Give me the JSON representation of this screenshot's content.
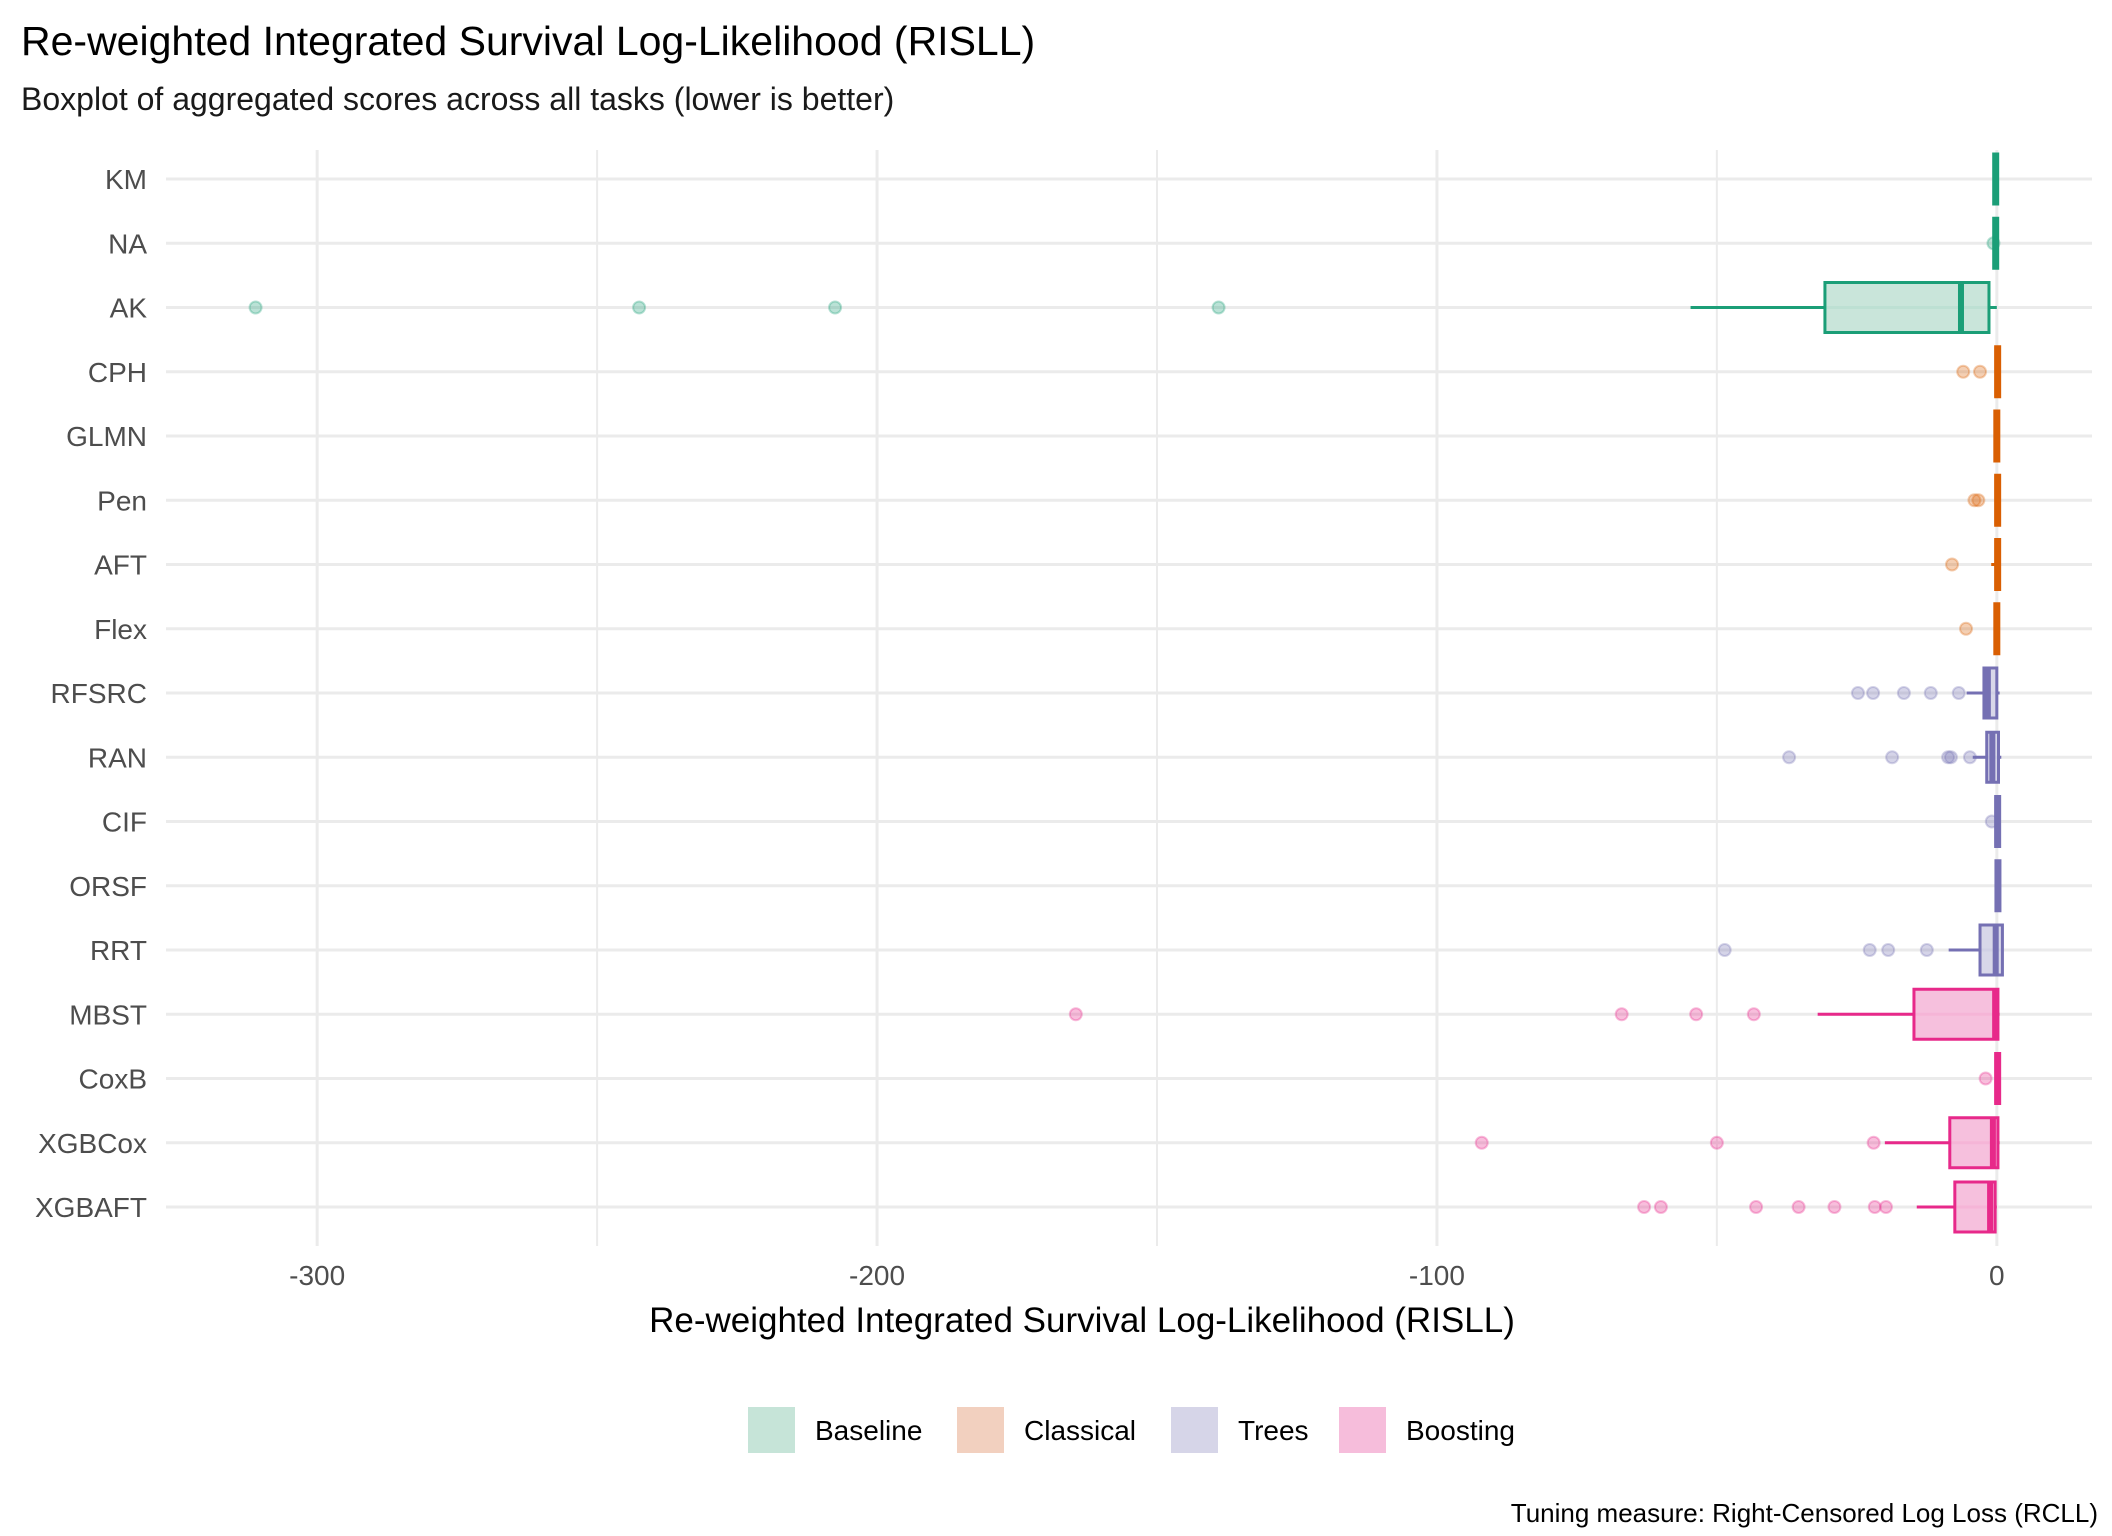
{
  "chart_data": {
    "type": "boxplot",
    "orientation": "horizontal",
    "title": "Re-weighted Integrated Survival Log-Likelihood (RISLL)",
    "subtitle": "Boxplot of aggregated scores across all tasks (lower is better)",
    "xlabel": "Re-weighted Integrated Survival Log-Likelihood (RISLL)",
    "ylabel": "",
    "caption": "Tuning measure: Right-Censored Log Loss (RCLL)",
    "xlim": [
      -327,
      17
    ],
    "xticks": [
      -300,
      -200,
      -100,
      0
    ],
    "xtick_labels": [
      "-300",
      "-200",
      "-100",
      "0"
    ],
    "grid": true,
    "legend_position": "bottom",
    "groups": [
      {
        "name": "Baseline",
        "line": "#1b9e77",
        "fill": "#c6e4d8"
      },
      {
        "name": "Classical",
        "line": "#d95f02",
        "fill": "#f2d0bf"
      },
      {
        "name": "Trees",
        "line": "#7570b3",
        "fill": "#d6d5e8"
      },
      {
        "name": "Boosting",
        "line": "#e7298a",
        "fill": "#f6bddb"
      }
    ],
    "categories": [
      "KM",
      "NA",
      "AK",
      "CPH",
      "GLMN",
      "Pen",
      "AFT",
      "Flex",
      "RFSRC",
      "RAN",
      "CIF",
      "ORSF",
      "RRT",
      "MBST",
      "CoxB",
      "XGBCox",
      "XGBAFT"
    ],
    "boxes": [
      {
        "label": "KM",
        "group": "Baseline",
        "whislo": -0.3,
        "q1": -0.3,
        "med": -0.2,
        "q3": -0.1,
        "whishi": 0,
        "outliers": []
      },
      {
        "label": "NA",
        "group": "Baseline",
        "whislo": -0.4,
        "q1": -0.3,
        "med": -0.2,
        "q3": -0.1,
        "whishi": 0,
        "outliers": [
          -0.6
        ]
      },
      {
        "label": "AK",
        "group": "Baseline",
        "whislo": -54.7,
        "q1": -30.7,
        "med": -6.4,
        "q3": -1.4,
        "whishi": 0,
        "outliers": [
          -311,
          -242.5,
          -207.5,
          -139
        ]
      },
      {
        "label": "CPH",
        "group": "Classical",
        "whislo": 0,
        "q1": 0,
        "med": 0.1,
        "q3": 0.3,
        "whishi": 0.4,
        "outliers": [
          -6,
          -3
        ]
      },
      {
        "label": "GLMN",
        "group": "Classical",
        "whislo": -0.3,
        "q1": -0.2,
        "med": 0,
        "q3": 0.2,
        "whishi": 0.3,
        "outliers": []
      },
      {
        "label": "Pen",
        "group": "Classical",
        "whislo": 0,
        "q1": 0,
        "med": 0.1,
        "q3": 0.3,
        "whishi": 0.4,
        "outliers": [
          -4,
          -3.3
        ]
      },
      {
        "label": "AFT",
        "group": "Classical",
        "whislo": -1,
        "q1": 0,
        "med": 0.1,
        "q3": 0.3,
        "whishi": 0.4,
        "outliers": [
          -8
        ]
      },
      {
        "label": "Flex",
        "group": "Classical",
        "whislo": -0.2,
        "q1": -0.2,
        "med": 0,
        "q3": 0.2,
        "whishi": 0.4,
        "outliers": [
          -5.5
        ]
      },
      {
        "label": "RFSRC",
        "group": "Trees",
        "whislo": -5.4,
        "q1": -2.3,
        "med": -1.6,
        "q3": 0,
        "whishi": 0.5,
        "outliers": [
          -24.8,
          -22.1,
          -16.6,
          -11.8,
          -6.8
        ]
      },
      {
        "label": "RAN",
        "group": "Trees",
        "whislo": -4.3,
        "q1": -1.8,
        "med": -0.8,
        "q3": 0.3,
        "whishi": 0.8,
        "outliers": [
          -37.1,
          -18.7,
          -8.7,
          -8.2,
          -4.8
        ]
      },
      {
        "label": "CIF",
        "group": "Trees",
        "whislo": 0,
        "q1": 0,
        "med": 0.1,
        "q3": 0.3,
        "whishi": 0.4,
        "outliers": [
          -0.9
        ]
      },
      {
        "label": "ORSF",
        "group": "Trees",
        "whislo": -0.3,
        "q1": 0,
        "med": 0.2,
        "q3": 0.4,
        "whishi": 0.5,
        "outliers": []
      },
      {
        "label": "RRT",
        "group": "Trees",
        "whislo": -8.6,
        "q1": -3.0,
        "med": -0.2,
        "q3": 1.0,
        "whishi": 1.0,
        "outliers": [
          -48.6,
          -22.7,
          -19.4,
          -12.5
        ]
      },
      {
        "label": "MBST",
        "group": "Boosting",
        "whislo": -32,
        "q1": -14.8,
        "med": -0.3,
        "q3": 0.2,
        "whishi": 0.5,
        "outliers": [
          -164.5,
          -67,
          -53.7,
          -43.4
        ]
      },
      {
        "label": "CoxB",
        "group": "Boosting",
        "whislo": 0,
        "q1": 0,
        "med": 0.1,
        "q3": 0.3,
        "whishi": 0.4,
        "outliers": [
          -2
        ]
      },
      {
        "label": "XGBCox",
        "group": "Boosting",
        "whislo": -20,
        "q1": -8.4,
        "med": -0.7,
        "q3": 0.2,
        "whishi": 0.5,
        "outliers": [
          -92,
          -50,
          -22
        ]
      },
      {
        "label": "XGBAFT",
        "group": "Boosting",
        "whislo": -14.3,
        "q1": -7.5,
        "med": -1.2,
        "q3": -0.3,
        "whishi": 0,
        "outliers": [
          -63,
          -60,
          -43,
          -35.4,
          -29,
          -21.8,
          -19.8
        ]
      }
    ]
  }
}
